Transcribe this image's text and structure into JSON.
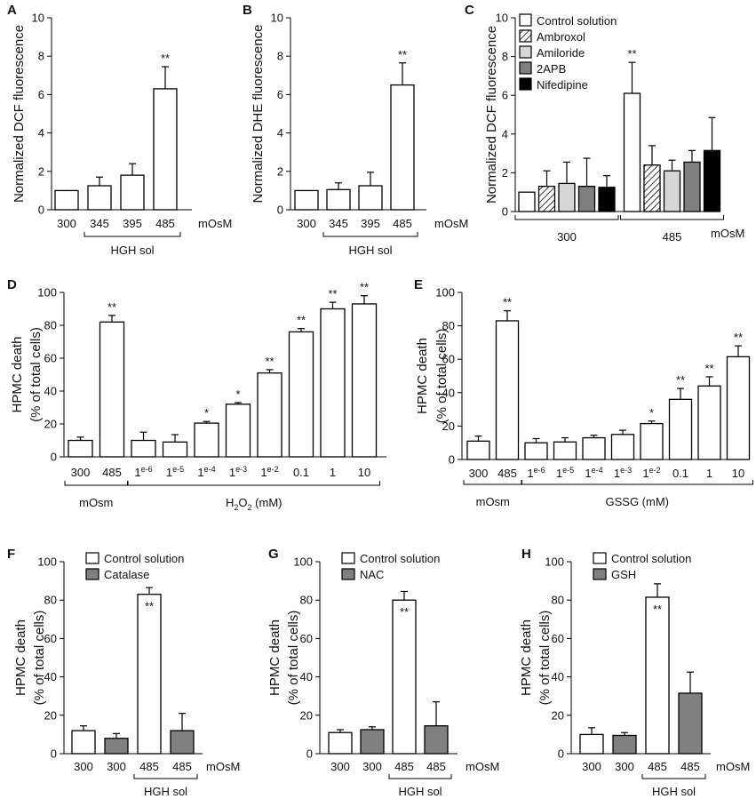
{
  "colors": {
    "white": "#ffffff",
    "gray": "#808080",
    "lightgray": "#d6d6d6",
    "black": "#000000"
  },
  "chart_data": [
    {
      "id": "A",
      "letter": "A",
      "type": "bar",
      "ylabel": "Normalized DCF fluorescence",
      "ylim": [
        0,
        10
      ],
      "yticks": [
        0,
        2,
        4,
        6,
        8,
        10
      ],
      "categories": [
        "300",
        "345",
        "395",
        "485"
      ],
      "values": [
        1.0,
        1.25,
        1.8,
        6.3
      ],
      "errors": [
        0,
        0.45,
        0.6,
        1.15
      ],
      "fills": [
        "white",
        "white",
        "white",
        "white"
      ],
      "stars": [
        "",
        "",
        "",
        "**"
      ],
      "unit": "mOsM",
      "groups": [
        {
          "label": "HGH sol",
          "from": 1,
          "to": 3
        }
      ]
    },
    {
      "id": "B",
      "letter": "B",
      "type": "bar",
      "ylabel": "Normalized DHE fluorescence",
      "ylim": [
        0,
        10
      ],
      "yticks": [
        0,
        2,
        4,
        6,
        8,
        10
      ],
      "categories": [
        "300",
        "345",
        "395",
        "485"
      ],
      "values": [
        1.0,
        1.05,
        1.25,
        6.5
      ],
      "errors": [
        0,
        0.35,
        0.7,
        1.15
      ],
      "fills": [
        "white",
        "white",
        "white",
        "white"
      ],
      "stars": [
        "",
        "",
        "",
        "**"
      ],
      "unit": "mOsM",
      "groups": [
        {
          "label": "HGH sol",
          "from": 1,
          "to": 3
        }
      ]
    },
    {
      "id": "C",
      "letter": "C",
      "type": "bar",
      "ylabel": "Normalized DCF fluorescence",
      "ylim": [
        0,
        10
      ],
      "yticks": [
        0,
        2,
        4,
        6,
        8,
        10
      ],
      "categories": [
        "",
        "",
        "",
        "",
        "",
        "",
        "",
        "",
        "",
        ""
      ],
      "values": [
        1.0,
        1.3,
        1.45,
        1.3,
        1.25,
        6.1,
        2.4,
        2.1,
        2.55,
        3.15
      ],
      "errors": [
        0,
        0.8,
        1.1,
        1.45,
        0.6,
        1.6,
        1.0,
        0.55,
        0.6,
        1.7
      ],
      "fills": [
        "white",
        "hatch",
        "lightgray",
        "gray",
        "black",
        "white",
        "hatch",
        "lightgray",
        "gray",
        "black"
      ],
      "stars": [
        "",
        "",
        "",
        "",
        "",
        "**",
        "",
        "",
        "",
        ""
      ],
      "unit": "mOsM",
      "groups": [
        {
          "label": "300",
          "from": 0,
          "to": 4
        },
        {
          "label": "485",
          "from": 5,
          "to": 9
        }
      ],
      "legend": [
        {
          "label": "Control solution",
          "fill": "white"
        },
        {
          "label": "Ambroxol",
          "fill": "hatch"
        },
        {
          "label": "Amiloride",
          "fill": "lightgray"
        },
        {
          "label": "2APB",
          "fill": "gray"
        },
        {
          "label": "Nifedipine",
          "fill": "black"
        }
      ]
    },
    {
      "id": "D",
      "letter": "D",
      "type": "bar",
      "ylabel": "HPMC death",
      "ylabel2": "(% of total cells)",
      "ylim": [
        0,
        100
      ],
      "yticks": [
        0,
        20,
        40,
        60,
        80,
        100
      ],
      "categories": [
        "300",
        "485",
        "1e-6",
        "1e-5",
        "1e-4",
        "1e-3",
        "1e-2",
        "0.1",
        "1",
        "10"
      ],
      "values": [
        10,
        82,
        10,
        9,
        20.5,
        32,
        51,
        76,
        90,
        93
      ],
      "errors": [
        2,
        4,
        5,
        4.5,
        1,
        1,
        2,
        2,
        4,
        5
      ],
      "fills": [
        "white",
        "white",
        "white",
        "white",
        "white",
        "white",
        "white",
        "white",
        "white",
        "white"
      ],
      "stars": [
        "",
        "**",
        "",
        "",
        "*",
        "*",
        "**",
        "**",
        "**",
        "**"
      ],
      "unit": "",
      "groups": [
        {
          "label": "mOsm",
          "from": 0,
          "to": 1
        },
        {
          "label": "H2O2 (mM)",
          "from": 2,
          "to": 9,
          "h2o2": true
        }
      ]
    },
    {
      "id": "E",
      "letter": "E",
      "type": "bar",
      "ylabel": "HPMC death",
      "ylabel2": "(% of total cells)",
      "ylim": [
        0,
        100
      ],
      "yticks": [
        0,
        20,
        40,
        60,
        80,
        100
      ],
      "categories": [
        "300",
        "485",
        "1e-6",
        "1e-5",
        "1e-4",
        "1e-3",
        "1e-2",
        "0.1",
        "1",
        "10"
      ],
      "values": [
        11,
        83,
        10,
        10.5,
        13,
        15,
        21.5,
        36,
        44,
        61.5
      ],
      "errors": [
        3,
        6,
        2.5,
        2.5,
        1.5,
        2.5,
        1.5,
        6.5,
        5.5,
        6.5
      ],
      "fills": [
        "white",
        "white",
        "white",
        "white",
        "white",
        "white",
        "white",
        "white",
        "white",
        "white"
      ],
      "stars": [
        "",
        "**",
        "",
        "",
        "",
        "",
        "*",
        "**",
        "**",
        "**"
      ],
      "unit": "",
      "groups": [
        {
          "label": "mOsm",
          "from": 0,
          "to": 1
        },
        {
          "label": "GSSG (mM)",
          "from": 2,
          "to": 9
        }
      ]
    },
    {
      "id": "F",
      "letter": "F",
      "type": "bar",
      "ylabel": "HPMC death",
      "ylabel2": "(% of total cells)",
      "ylim": [
        0,
        100
      ],
      "yticks": [
        0,
        20,
        40,
        60,
        80,
        100
      ],
      "categories": [
        "300",
        "300",
        "485",
        "485"
      ],
      "values": [
        12,
        8,
        83,
        12
      ],
      "errors": [
        2.5,
        2.5,
        3.5,
        9
      ],
      "fills": [
        "white",
        "gray",
        "white",
        "gray"
      ],
      "stars": [
        "",
        "",
        "**",
        ""
      ],
      "starInside": true,
      "unit": "mOsM",
      "groups": [
        {
          "label": "HGH sol",
          "from": 2,
          "to": 3
        }
      ],
      "legend": [
        {
          "label": "Control solution",
          "fill": "white"
        },
        {
          "label": "Catalase",
          "fill": "gray"
        }
      ]
    },
    {
      "id": "G",
      "letter": "G",
      "type": "bar",
      "ylabel": "HPMC death",
      "ylabel2": "(% of total cells)",
      "ylim": [
        0,
        100
      ],
      "yticks": [
        0,
        20,
        40,
        60,
        80,
        100
      ],
      "categories": [
        "300",
        "300",
        "485",
        "485"
      ],
      "values": [
        11,
        12.5,
        80,
        14.5
      ],
      "errors": [
        1.5,
        1.5,
        4.5,
        12.5
      ],
      "fills": [
        "white",
        "gray",
        "white",
        "gray"
      ],
      "stars": [
        "",
        "",
        "**",
        ""
      ],
      "starInside": true,
      "unit": "mOsM",
      "groups": [
        {
          "label": "HGH sol",
          "from": 2,
          "to": 3
        }
      ],
      "legend": [
        {
          "label": "Control solution",
          "fill": "white"
        },
        {
          "label": "NAC",
          "fill": "gray"
        }
      ]
    },
    {
      "id": "H",
      "letter": "H",
      "type": "bar",
      "ylabel": "HPMC death",
      "ylabel2": "(% of total cells)",
      "ylim": [
        0,
        100
      ],
      "yticks": [
        0,
        20,
        40,
        60,
        80,
        100
      ],
      "categories": [
        "300",
        "300",
        "485",
        "485"
      ],
      "values": [
        10,
        9.5,
        81.5,
        31.5
      ],
      "errors": [
        3.5,
        1.5,
        7,
        11
      ],
      "fills": [
        "white",
        "gray",
        "white",
        "gray"
      ],
      "stars": [
        "",
        "",
        "**",
        ""
      ],
      "starInside": true,
      "unit": "mOsM",
      "groups": [
        {
          "label": "HGH sol",
          "from": 2,
          "to": 3
        }
      ],
      "legend": [
        {
          "label": "Control solution",
          "fill": "white"
        },
        {
          "label": "GSH",
          "fill": "gray"
        }
      ]
    }
  ]
}
